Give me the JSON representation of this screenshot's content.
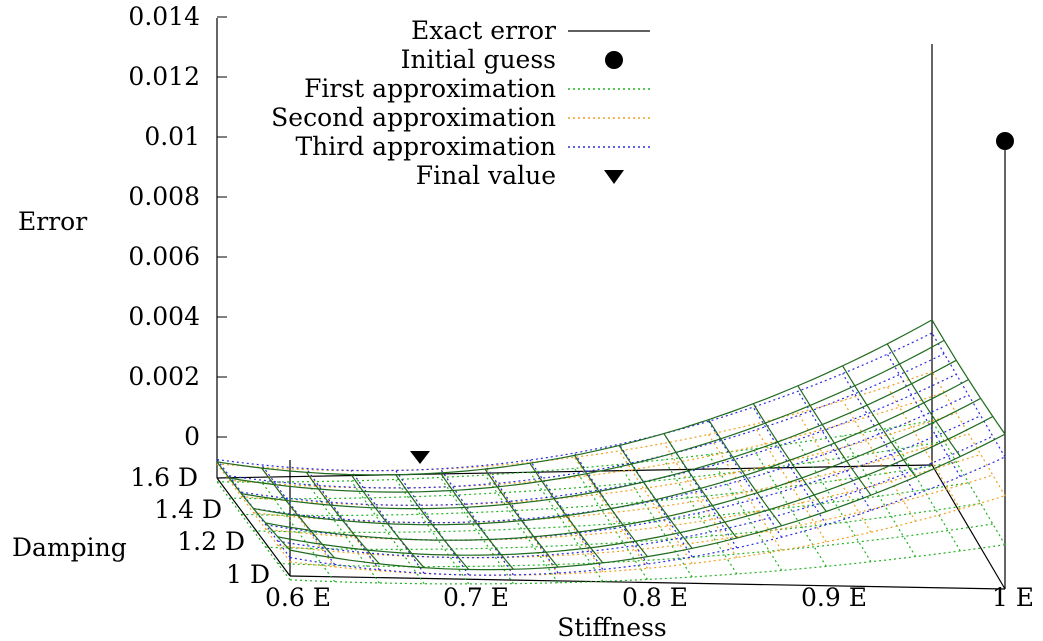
{
  "chart_data": {
    "type": "surface3d",
    "zlabel": "Error",
    "xlabel": "Stiffness",
    "ylabel": "Damping",
    "ztick_labels": [
      "0",
      "0.002",
      "0.004",
      "0.006",
      "0.008",
      "0.01",
      "0.012",
      "0.014"
    ],
    "xtick_labels": [
      "0.6  E",
      "0.7  E",
      "0.8  E",
      "0.9  E",
      "1  E"
    ],
    "ytick_labels": [
      "1  D",
      "1.2  D",
      "1.4  D",
      "1.6  D"
    ],
    "xlim": [
      0.6,
      1.0
    ],
    "ylim": [
      1.0,
      1.6
    ],
    "zlim": [
      0,
      0.014
    ],
    "legend_position": "top",
    "colors": {
      "exact": "#1f6b1f",
      "first": "#22b322",
      "second": "#f0a020",
      "third": "#2a2ae0",
      "axes": "#000000"
    },
    "series": [
      {
        "name": "Exact error",
        "style": "solid-line",
        "color": "#1f6b1f"
      },
      {
        "name": "Initial guess",
        "style": "circle-marker",
        "x": 1.0,
        "y": 1.6,
        "z": 0.0093
      },
      {
        "name": "First approximation",
        "style": "dotted-line",
        "color": "#22b322"
      },
      {
        "name": "Second approximation",
        "style": "dotted-line",
        "color": "#f0a020"
      },
      {
        "name": "Third approximation",
        "style": "dotted-line",
        "color": "#2a2ae0"
      },
      {
        "name": "Final value",
        "style": "triangle-marker",
        "x": 0.7,
        "y": 1.6,
        "z": 0.0
      }
    ]
  }
}
